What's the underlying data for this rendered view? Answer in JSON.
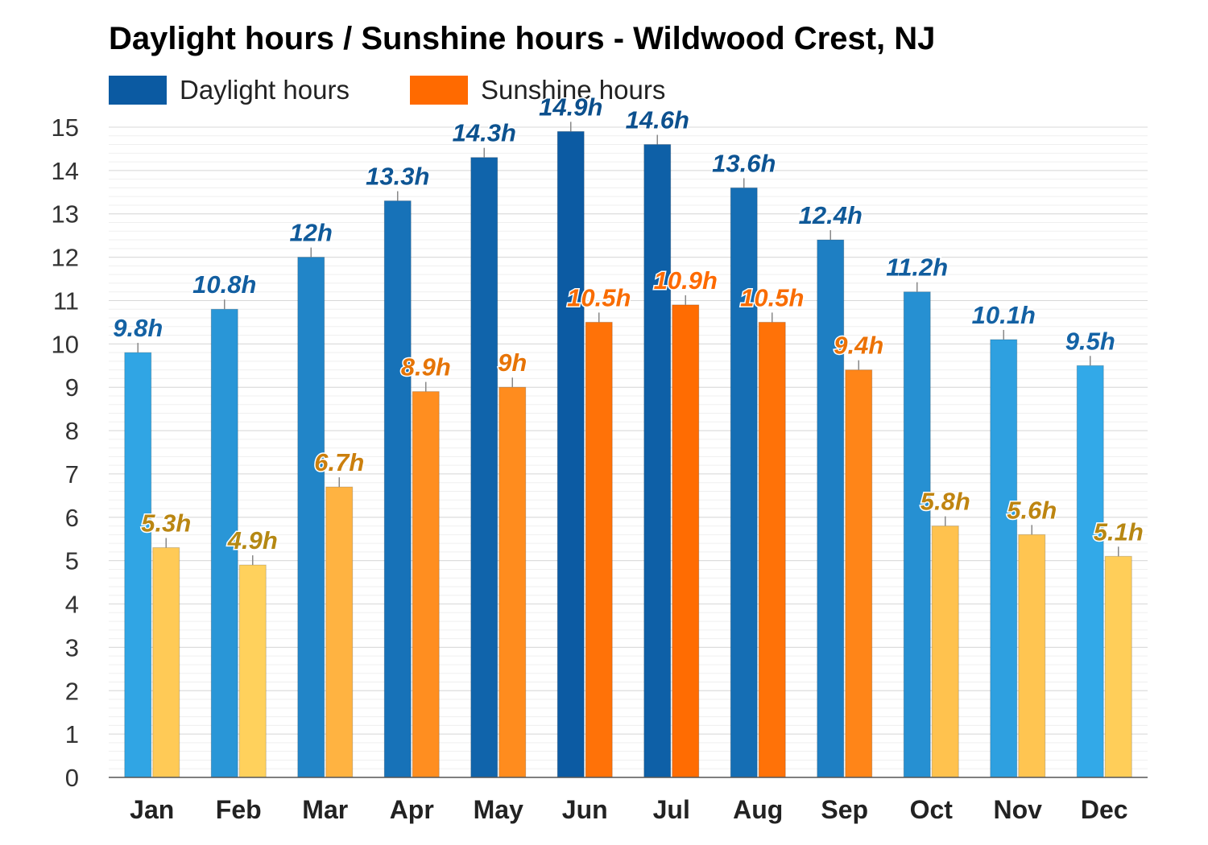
{
  "chart_data": {
    "type": "bar",
    "title": "Daylight hours / Sunshine hours - Wildwood Crest, NJ",
    "xlabel": "",
    "ylabel": "",
    "ylim": [
      0,
      15
    ],
    "yticks": [
      0,
      1,
      2,
      3,
      4,
      5,
      6,
      7,
      8,
      9,
      10,
      11,
      12,
      13,
      14,
      15
    ],
    "grid": true,
    "legend_position": "top-left",
    "categories": [
      "Jan",
      "Feb",
      "Mar",
      "Apr",
      "May",
      "Jun",
      "Jul",
      "Aug",
      "Sep",
      "Oct",
      "Nov",
      "Dec"
    ],
    "series": [
      {
        "name": "Daylight hours",
        "color": "#0B5AA2",
        "values": [
          9.8,
          10.8,
          12,
          13.3,
          14.3,
          14.9,
          14.6,
          13.6,
          12.4,
          11.2,
          10.1,
          9.5
        ],
        "labels": [
          "9.8h",
          "10.8h",
          "12h",
          "13.3h",
          "14.3h",
          "14.9h",
          "14.6h",
          "13.6h",
          "12.4h",
          "11.2h",
          "10.1h",
          "9.5h"
        ]
      },
      {
        "name": "Sunshine hours",
        "color": "#FF6A00",
        "values": [
          5.3,
          4.9,
          6.7,
          8.9,
          9,
          10.5,
          10.9,
          10.5,
          9.4,
          5.8,
          5.6,
          5.1
        ],
        "labels": [
          "5.3h",
          "4.9h",
          "6.7h",
          "8.9h",
          "9h",
          "10.5h",
          "10.9h",
          "10.5h",
          "9.4h",
          "5.8h",
          "5.6h",
          "5.1h"
        ]
      }
    ]
  }
}
